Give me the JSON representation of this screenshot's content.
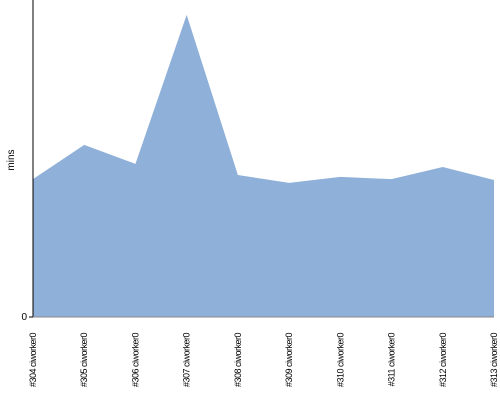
{
  "chart_data": {
    "type": "area",
    "y_label": "mins",
    "categories": [
      "#304 ciworker0",
      "#305 ciworker0",
      "#306 ciworker0",
      "#307 ciworker0",
      "#308 ciworker0",
      "#309 ciworker0",
      "#310 ciworker0",
      "#311 ciworker0",
      "#312 ciworker0",
      "#313 ciworker0"
    ],
    "values": [
      43.5,
      54.3,
      48.3,
      95.3,
      44.8,
      42.3,
      44.2,
      43.5,
      47.3,
      43.2
    ],
    "color": "#8fb0d9",
    "ylim": [
      0,
      100
    ],
    "yticks": [
      0
    ]
  }
}
